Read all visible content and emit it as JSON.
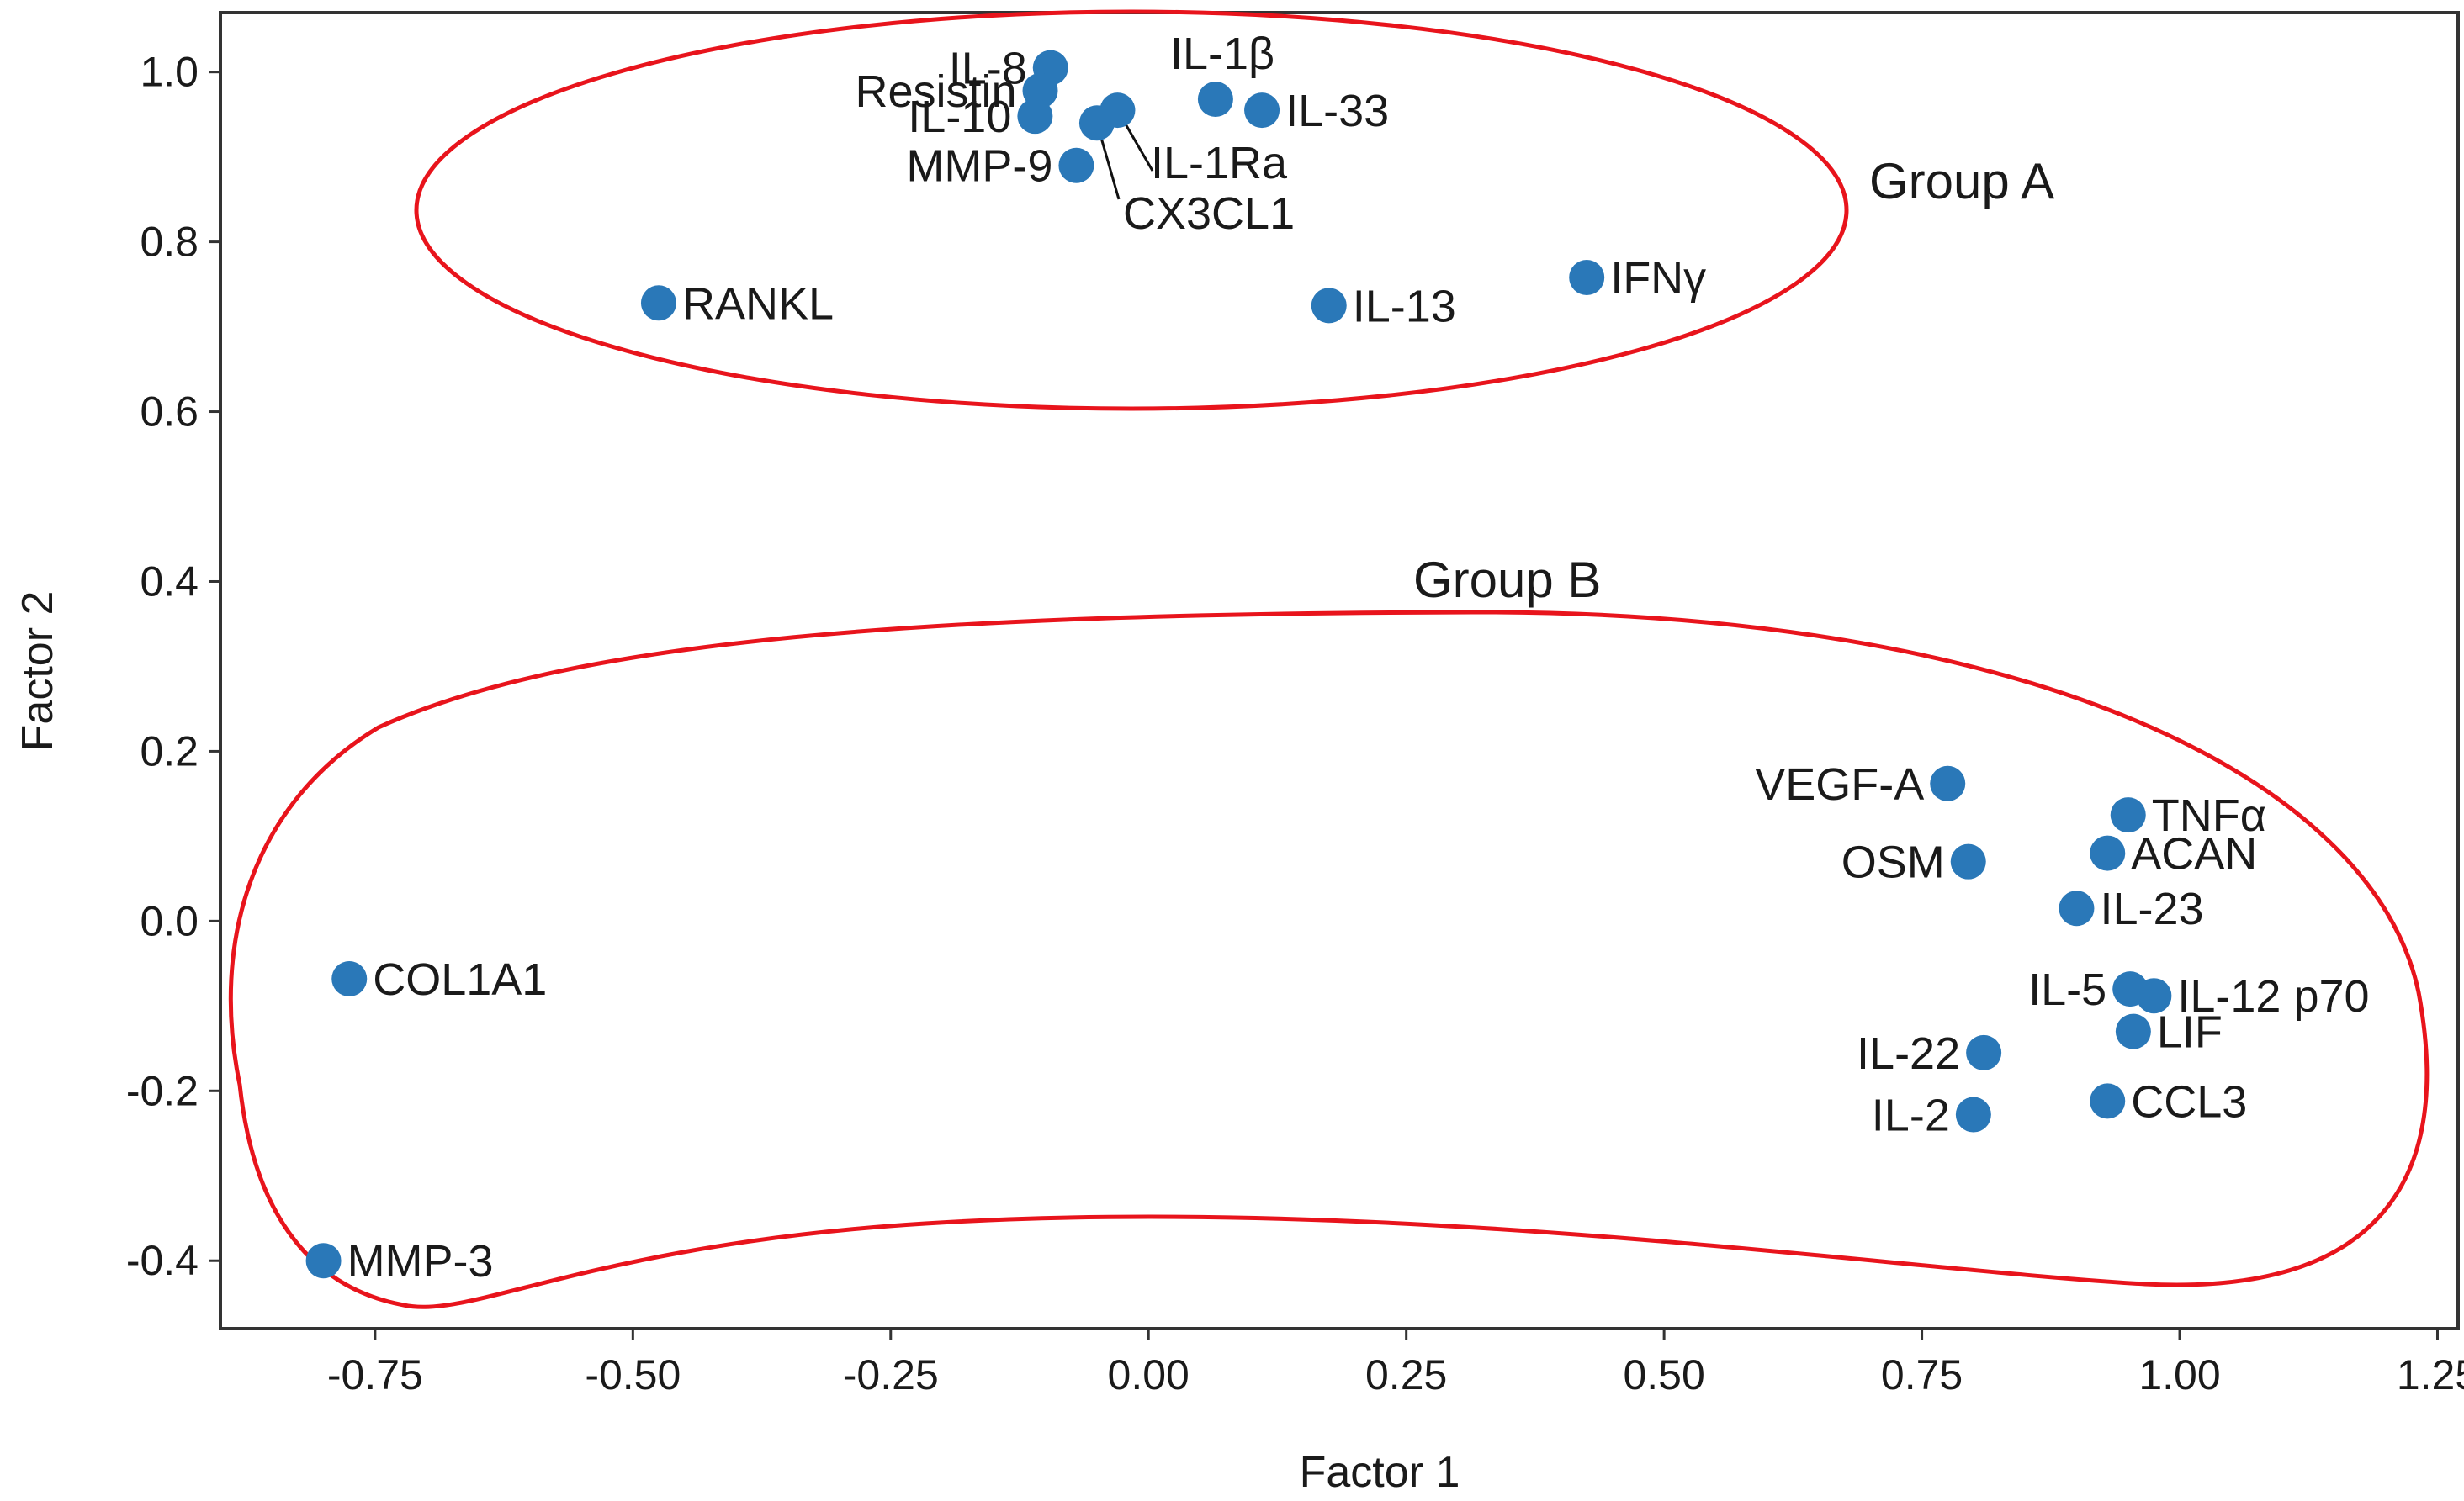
{
  "chart_data": {
    "type": "scatter",
    "title": "",
    "xlabel": "Factor 1",
    "ylabel": "Factor 2",
    "xlim": [
      -0.9,
      1.27
    ],
    "ylim": [
      -0.48,
      1.07
    ],
    "grid": false,
    "x_ticks": [
      -0.75,
      -0.5,
      -0.25,
      0.0,
      0.25,
      0.5,
      0.75,
      1.0,
      1.25
    ],
    "x_tick_labels": [
      "-0.75",
      "-0.50",
      "-0.25",
      "0.00",
      "0.25",
      "0.50",
      "0.75",
      "1.00",
      "1.25"
    ],
    "y_ticks": [
      1.0,
      0.8,
      0.6,
      0.4,
      0.2,
      0.0,
      -0.2,
      -0.4
    ],
    "y_tick_labels": [
      "1.0",
      "0.8",
      "0.6",
      "0.4",
      "0.2",
      "0.0",
      "-0.2",
      "-0.4"
    ],
    "marker_color": "#2a78b8",
    "group_color": "#e8141c",
    "groups": [
      {
        "name": "Group A"
      },
      {
        "name": "Group B"
      }
    ],
    "points": [
      {
        "label": "IL-8",
        "x": -0.095,
        "y": 1.005,
        "anchor": "end",
        "leader": false
      },
      {
        "label": "Resistin",
        "x": -0.105,
        "y": 0.978,
        "anchor": "end",
        "leader": false
      },
      {
        "label": "IL-10",
        "x": -0.11,
        "y": 0.948,
        "anchor": "end",
        "leader": false
      },
      {
        "label": "MMP-9",
        "x": -0.07,
        "y": 0.89,
        "anchor": "end",
        "leader": false
      },
      {
        "label": "IL-1Ra",
        "x": -0.03,
        "y": 0.955,
        "anchor": "start",
        "leader": true
      },
      {
        "label": "CX3CL1",
        "x": -0.05,
        "y": 0.94,
        "anchor": "start",
        "leader": true
      },
      {
        "label": "IL-1β",
        "x": 0.065,
        "y": 0.968,
        "anchor": "middle",
        "leader": false
      },
      {
        "label": "IL-33",
        "x": 0.11,
        "y": 0.955,
        "anchor": "start",
        "leader": false
      },
      {
        "label": "RANKL",
        "x": -0.475,
        "y": 0.728,
        "anchor": "start",
        "leader": false
      },
      {
        "label": "IL-13",
        "x": 0.175,
        "y": 0.725,
        "anchor": "start",
        "leader": false
      },
      {
        "label": "IFNγ",
        "x": 0.425,
        "y": 0.758,
        "anchor": "start",
        "leader": false
      },
      {
        "label": "VEGF-A",
        "x": 0.775,
        "y": 0.162,
        "anchor": "end",
        "leader": false
      },
      {
        "label": "TNFα",
        "x": 0.95,
        "y": 0.125,
        "anchor": "start",
        "leader": false
      },
      {
        "label": "OSM",
        "x": 0.795,
        "y": 0.07,
        "anchor": "end",
        "leader": false
      },
      {
        "label": "ACAN",
        "x": 0.93,
        "y": 0.08,
        "anchor": "start",
        "leader": false
      },
      {
        "label": "IL-23",
        "x": 0.9,
        "y": 0.015,
        "anchor": "start",
        "leader": false
      },
      {
        "label": "COL1A1",
        "x": -0.775,
        "y": -0.068,
        "anchor": "start",
        "leader": false
      },
      {
        "label": "IL-5",
        "x": 0.952,
        "y": -0.08,
        "anchor": "end",
        "leader": false
      },
      {
        "label": "IL-12 p70",
        "x": 0.975,
        "y": -0.088,
        "anchor": "start",
        "leader": false
      },
      {
        "label": "LIF",
        "x": 0.955,
        "y": -0.13,
        "anchor": "start",
        "leader": false
      },
      {
        "label": "IL-22",
        "x": 0.81,
        "y": -0.155,
        "anchor": "end",
        "leader": false
      },
      {
        "label": "CCL3",
        "x": 0.93,
        "y": -0.212,
        "anchor": "start",
        "leader": false
      },
      {
        "label": "IL-2",
        "x": 0.8,
        "y": -0.228,
        "anchor": "end",
        "leader": false
      },
      {
        "label": "MMP-3",
        "x": -0.8,
        "y": -0.4,
        "anchor": "start",
        "leader": false
      }
    ]
  }
}
